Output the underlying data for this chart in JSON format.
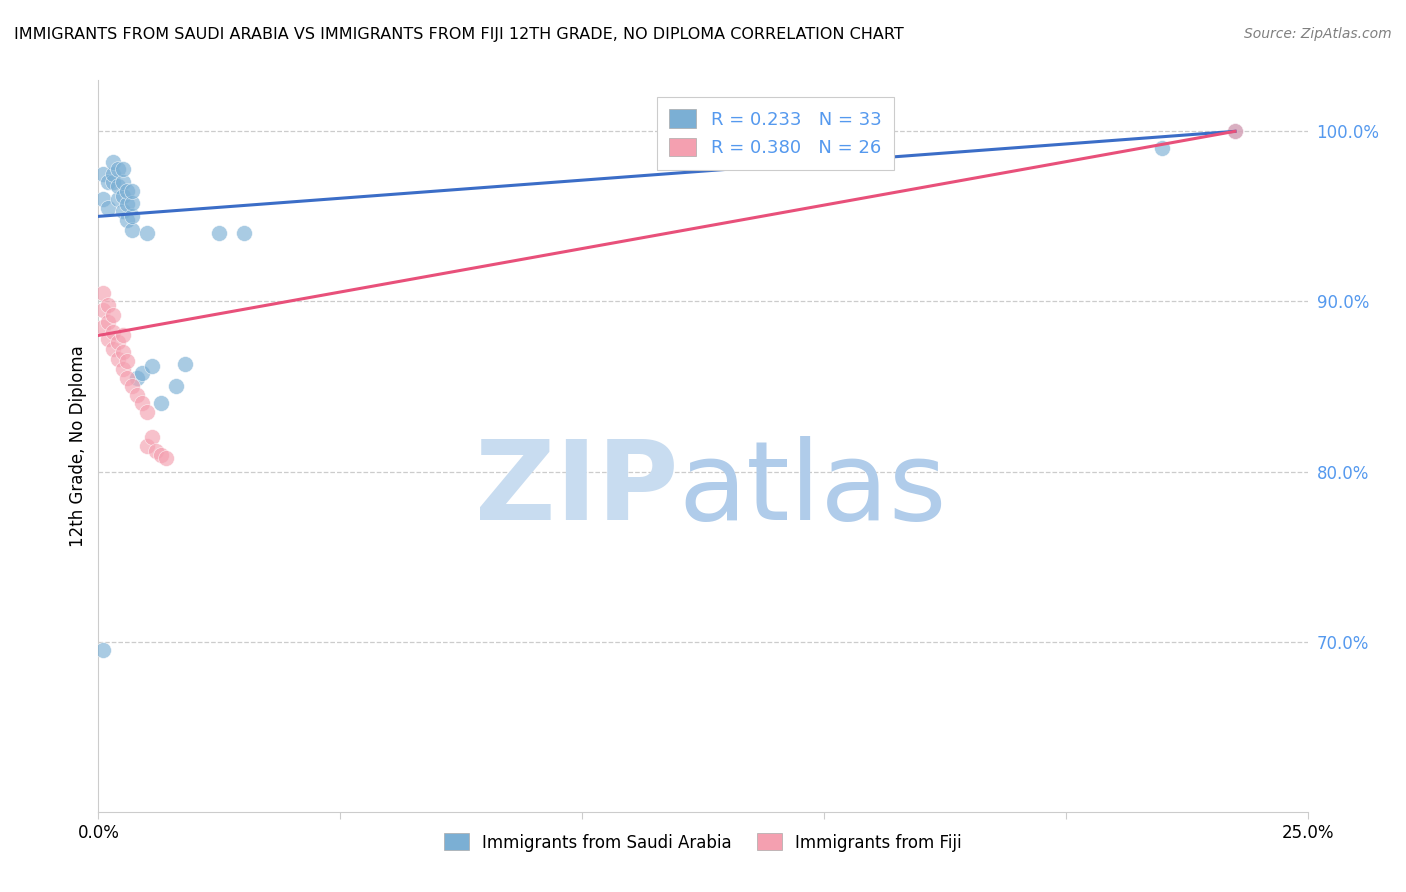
{
  "title": "IMMIGRANTS FROM SAUDI ARABIA VS IMMIGRANTS FROM FIJI 12TH GRADE, NO DIPLOMA CORRELATION CHART",
  "source": "Source: ZipAtlas.com",
  "ylabel": "12th Grade, No Diploma",
  "xlim": [
    0.0,
    0.25
  ],
  "ylim": [
    0.6,
    1.03
  ],
  "xticks": [
    0.0,
    0.05,
    0.1,
    0.15,
    0.2,
    0.25
  ],
  "xticklabels": [
    "0.0%",
    "",
    "",
    "",
    "",
    "25.0%"
  ],
  "yticks": [
    0.7,
    0.8,
    0.9,
    1.0
  ],
  "yticklabels": [
    "70.0%",
    "80.0%",
    "90.0%",
    "100.0%"
  ],
  "color_saudi": "#7BAFD4",
  "color_fiji": "#F4A0B0",
  "color_line_saudi": "#3B6DC7",
  "color_line_fiji": "#E8507A",
  "color_ytick": "#5599EE",
  "saudi_x": [
    0.001,
    0.001,
    0.002,
    0.002,
    0.003,
    0.003,
    0.003,
    0.004,
    0.004,
    0.004,
    0.005,
    0.005,
    0.005,
    0.005,
    0.006,
    0.006,
    0.006,
    0.007,
    0.007,
    0.007,
    0.007,
    0.008,
    0.009,
    0.01,
    0.011,
    0.013,
    0.016,
    0.018,
    0.025,
    0.03,
    0.22,
    0.235,
    0.001
  ],
  "saudi_y": [
    0.96,
    0.975,
    0.955,
    0.97,
    0.97,
    0.975,
    0.982,
    0.96,
    0.968,
    0.978,
    0.953,
    0.962,
    0.97,
    0.978,
    0.948,
    0.957,
    0.965,
    0.942,
    0.95,
    0.958,
    0.965,
    0.855,
    0.858,
    0.94,
    0.862,
    0.84,
    0.85,
    0.863,
    0.94,
    0.94,
    0.99,
    1.0,
    0.695
  ],
  "fiji_x": [
    0.001,
    0.001,
    0.001,
    0.002,
    0.002,
    0.002,
    0.003,
    0.003,
    0.003,
    0.004,
    0.004,
    0.005,
    0.005,
    0.005,
    0.006,
    0.006,
    0.007,
    0.008,
    0.009,
    0.01,
    0.01,
    0.011,
    0.012,
    0.013,
    0.014,
    0.235
  ],
  "fiji_y": [
    0.885,
    0.895,
    0.905,
    0.878,
    0.888,
    0.898,
    0.872,
    0.882,
    0.892,
    0.866,
    0.876,
    0.86,
    0.87,
    0.88,
    0.855,
    0.865,
    0.85,
    0.845,
    0.84,
    0.815,
    0.835,
    0.82,
    0.812,
    0.81,
    0.808,
    1.0
  ],
  "line_saudi_x0": 0.0,
  "line_saudi_y0": 0.95,
  "line_saudi_x1": 0.235,
  "line_saudi_y1": 1.0,
  "line_fiji_x0": 0.0,
  "line_fiji_y0": 0.88,
  "line_fiji_x1": 0.235,
  "line_fiji_y1": 1.0
}
